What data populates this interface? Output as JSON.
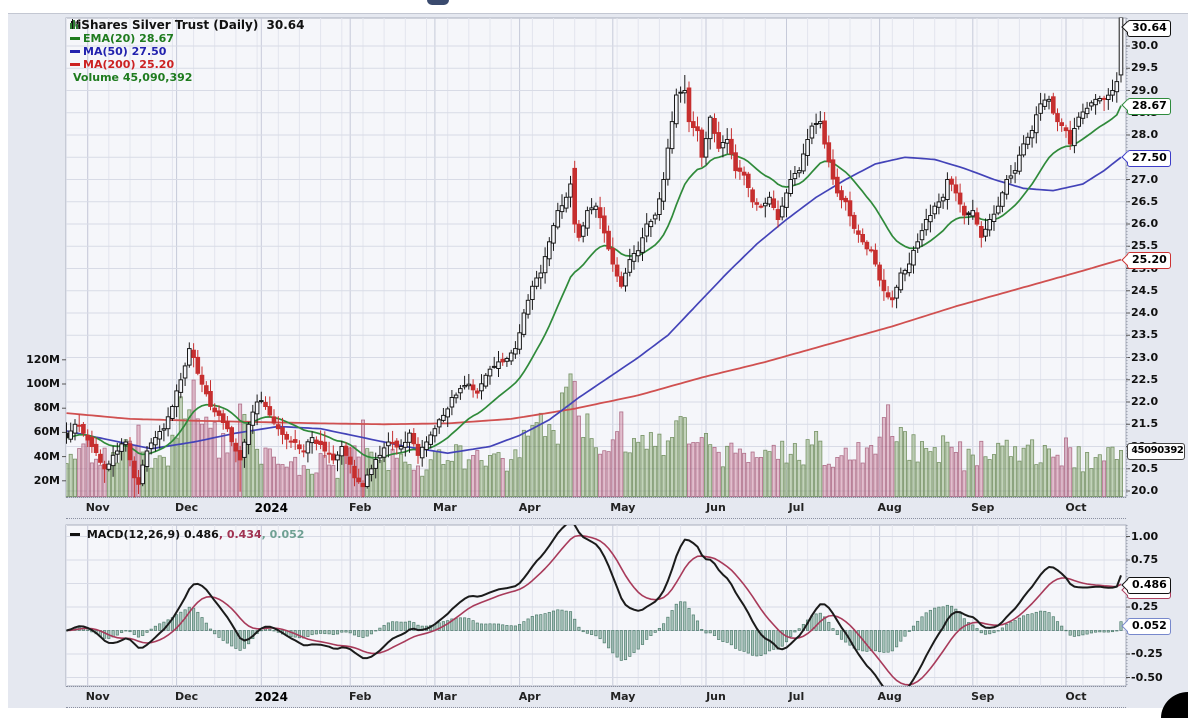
{
  "chart_data": {
    "type": "candlestick",
    "title": "iShares Silver Trust (Daily)",
    "last_price": "30.64",
    "legend": {
      "items": [
        {
          "id": "ema20",
          "label": "EMA(20) 28.67",
          "color": "#1e7b1e"
        },
        {
          "id": "ma50",
          "label": "MA(50) 27.50",
          "color": "#2222ae"
        },
        {
          "id": "ma200",
          "label": "MA(200) 25.20",
          "color": "#cc2222"
        },
        {
          "id": "volume",
          "label": "Volume 45,090,392",
          "color": "#1e7b1e"
        }
      ]
    },
    "macd_legend": {
      "label": "MACD(12,26,9)",
      "v1": " 0.486",
      "v2": ", 0.434",
      "v3": ", 0.052",
      "v1_color": "#111111",
      "v2_color": "#a03352",
      "v3_color": "#6fa093"
    },
    "x_labels": [
      {
        "label": "Nov",
        "day": 5
      },
      {
        "label": "Dec",
        "day": 26
      },
      {
        "label": "2024",
        "day": 46,
        "bold": true
      },
      {
        "label": "Feb",
        "day": 67
      },
      {
        "label": "Mar",
        "day": 87
      },
      {
        "label": "Apr",
        "day": 107
      },
      {
        "label": "May",
        "day": 129
      },
      {
        "label": "Jun",
        "day": 151
      },
      {
        "label": "Jul",
        "day": 170
      },
      {
        "label": "Aug",
        "day": 192
      },
      {
        "label": "Sep",
        "day": 214
      },
      {
        "label": "Oct",
        "day": 236
      }
    ],
    "price_ticks": [
      {
        "label": "30.0",
        "value": 30.0
      },
      {
        "label": "29.5",
        "value": 29.5
      },
      {
        "label": "29.0",
        "value": 29.0
      },
      {
        "label": "28.5",
        "value": 28.5
      },
      {
        "label": "28.0",
        "value": 28.0
      },
      {
        "label": "27.5",
        "value": 27.5
      },
      {
        "label": "27.0",
        "value": 27.0
      },
      {
        "label": "26.5",
        "value": 26.5
      },
      {
        "label": "26.0",
        "value": 26.0
      },
      {
        "label": "25.5",
        "value": 25.5
      },
      {
        "label": "25.0",
        "value": 25.0
      },
      {
        "label": "24.5",
        "value": 24.5
      },
      {
        "label": "24.0",
        "value": 24.0
      },
      {
        "label": "23.5",
        "value": 23.5
      },
      {
        "label": "23.0",
        "value": 23.0
      },
      {
        "label": "22.5",
        "value": 22.5
      },
      {
        "label": "22.0",
        "value": 22.0
      },
      {
        "label": "21.5",
        "value": 21.5
      },
      {
        "label": "21.0",
        "value": 21.0
      },
      {
        "label": "20.5",
        "value": 20.5
      },
      {
        "label": "20.0",
        "value": 20.0
      }
    ],
    "volume_ticks": [
      {
        "label": "120M",
        "value": 120
      },
      {
        "label": "100M",
        "value": 100
      },
      {
        "label": "80M",
        "value": 80
      },
      {
        "label": "60M",
        "value": 60
      },
      {
        "label": "40M",
        "value": 40
      },
      {
        "label": "20M",
        "value": 20
      }
    ],
    "macd_ticks": [
      {
        "label": "1.00",
        "value": 1.0
      },
      {
        "label": "0.75",
        "value": 0.75
      },
      {
        "label": "0.50",
        "value": 0.5
      },
      {
        "label": "0.25",
        "value": 0.25
      },
      {
        "label": "0.00",
        "value": 0.0
      },
      {
        "label": "-0.25",
        "value": -0.25
      },
      {
        "label": "-0.50",
        "value": -0.5
      }
    ],
    "price_badges": [
      {
        "id": "badge-last-price",
        "text": "30.64",
        "value": 30.64,
        "border": "#111111",
        "z": 9
      },
      {
        "id": "badge-ema20",
        "text": "28.67",
        "value": 28.67,
        "border": "#2e8b3c",
        "z": 8
      },
      {
        "id": "badge-ma50",
        "text": "27.50",
        "value": 27.5,
        "border": "#3c3cc8",
        "z": 8
      },
      {
        "id": "badge-ma200",
        "text": "25.20",
        "value": 25.2,
        "border": "#cc3333",
        "z": 8
      }
    ],
    "volume_badge": {
      "id": "badge-volume",
      "text": "45090392",
      "value": 45.09,
      "border": "#444444"
    },
    "macd_badges": [
      {
        "id": "badge-macd-signal",
        "text": "0.434",
        "value": 0.434,
        "border": "#b04060",
        "z": 7
      },
      {
        "id": "badge-macd-value",
        "text": "0.486",
        "value": 0.486,
        "border": "#111111",
        "z": 9
      },
      {
        "id": "badge-macd-hist",
        "text": "0.052",
        "value": 0.052,
        "border": "#7788cc",
        "z": 8
      }
    ],
    "series": {
      "days": 250,
      "close_keypoints": [
        [
          0,
          21.2
        ],
        [
          2,
          21.5
        ],
        [
          4,
          21.3
        ],
        [
          6,
          21.0
        ],
        [
          9,
          20.5
        ],
        [
          12,
          20.9
        ],
        [
          14,
          21.1
        ],
        [
          16,
          20.3
        ],
        [
          17,
          20.15
        ],
        [
          19,
          20.9
        ],
        [
          21,
          21.2
        ],
        [
          23,
          21.4
        ],
        [
          25,
          21.9
        ],
        [
          27,
          22.5
        ],
        [
          29,
          23.2
        ],
        [
          30,
          23.0
        ],
        [
          32,
          22.4
        ],
        [
          34,
          21.9
        ],
        [
          36,
          21.7
        ],
        [
          38,
          21.4
        ],
        [
          40,
          20.9
        ],
        [
          41,
          20.7
        ],
        [
          43,
          21.5
        ],
        [
          45,
          22.0
        ],
        [
          47,
          21.9
        ],
        [
          50,
          21.4
        ],
        [
          53,
          21.1
        ],
        [
          56,
          20.9
        ],
        [
          58,
          21.2
        ],
        [
          61,
          20.9
        ],
        [
          63,
          20.7
        ],
        [
          65,
          21.0
        ],
        [
          66,
          20.8
        ],
        [
          68,
          20.3
        ],
        [
          70,
          20.1
        ],
        [
          72,
          20.5
        ],
        [
          74,
          20.8
        ],
        [
          76,
          21.1
        ],
        [
          79,
          21.0
        ],
        [
          81,
          21.3
        ],
        [
          83,
          20.8
        ],
        [
          85,
          21.1
        ],
        [
          87,
          21.4
        ],
        [
          89,
          21.7
        ],
        [
          91,
          22.1
        ],
        [
          93,
          22.3
        ],
        [
          95,
          22.4
        ],
        [
          97,
          22.2
        ],
        [
          99,
          22.6
        ],
        [
          101,
          22.8
        ],
        [
          103,
          22.9
        ],
        [
          105,
          23.1
        ],
        [
          106,
          23.2
        ],
        [
          108,
          24.0
        ],
        [
          110,
          24.6
        ],
        [
          112,
          24.9
        ],
        [
          114,
          25.6
        ],
        [
          116,
          26.3
        ],
        [
          118,
          26.6
        ],
        [
          119,
          26.9
        ],
        [
          120,
          26.0
        ],
        [
          121,
          25.7
        ],
        [
          123,
          26.3
        ],
        [
          125,
          26.4
        ],
        [
          127,
          25.8
        ],
        [
          129,
          25.1
        ],
        [
          131,
          24.6
        ],
        [
          133,
          25.2
        ],
        [
          135,
          25.4
        ],
        [
          137,
          26.0
        ],
        [
          139,
          26.2
        ],
        [
          141,
          27.0
        ],
        [
          143,
          28.3
        ],
        [
          144,
          28.9
        ],
        [
          146,
          29.0
        ],
        [
          147,
          28.3
        ],
        [
          149,
          28.1
        ],
        [
          150,
          27.5
        ],
        [
          152,
          28.4
        ],
        [
          154,
          27.7
        ],
        [
          156,
          27.9
        ],
        [
          158,
          27.2
        ],
        [
          160,
          27.1
        ],
        [
          162,
          26.5
        ],
        [
          164,
          26.4
        ],
        [
          166,
          26.6
        ],
        [
          168,
          26.1
        ],
        [
          169,
          26.4
        ],
        [
          171,
          27.0
        ],
        [
          173,
          27.2
        ],
        [
          175,
          27.9
        ],
        [
          176,
          28.2
        ],
        [
          178,
          28.3
        ],
        [
          180,
          27.4
        ],
        [
          182,
          26.7
        ],
        [
          184,
          26.5
        ],
        [
          186,
          25.9
        ],
        [
          188,
          25.6
        ],
        [
          190,
          25.4
        ],
        [
          191,
          25.1
        ],
        [
          193,
          24.5
        ],
        [
          195,
          24.3
        ],
        [
          197,
          24.9
        ],
        [
          199,
          25.1
        ],
        [
          201,
          25.6
        ],
        [
          203,
          26.1
        ],
        [
          205,
          26.4
        ],
        [
          207,
          26.6
        ],
        [
          208,
          27.0
        ],
        [
          210,
          26.7
        ],
        [
          212,
          26.2
        ],
        [
          214,
          26.3
        ],
        [
          216,
          25.7
        ],
        [
          218,
          26.1
        ],
        [
          220,
          26.4
        ],
        [
          222,
          27.0
        ],
        [
          224,
          27.2
        ],
        [
          226,
          27.8
        ],
        [
          228,
          28.1
        ],
        [
          230,
          28.7
        ],
        [
          232,
          28.8
        ],
        [
          234,
          28.3
        ],
        [
          236,
          28.1
        ],
        [
          237,
          27.8
        ],
        [
          239,
          28.4
        ],
        [
          241,
          28.6
        ],
        [
          243,
          28.8
        ],
        [
          245,
          28.8
        ],
        [
          247,
          29.0
        ],
        [
          248,
          29.2
        ],
        [
          249,
          30.64
        ]
      ],
      "volume_keypoints": [
        [
          0,
          40
        ],
        [
          4,
          46
        ],
        [
          8,
          38
        ],
        [
          12,
          34
        ],
        [
          16,
          58
        ],
        [
          20,
          36
        ],
        [
          24,
          42
        ],
        [
          27,
          70
        ],
        [
          29,
          95
        ],
        [
          31,
          88
        ],
        [
          34,
          60
        ],
        [
          37,
          48
        ],
        [
          40,
          55
        ],
        [
          41,
          72
        ],
        [
          44,
          48
        ],
        [
          48,
          40
        ],
        [
          52,
          34
        ],
        [
          56,
          30
        ],
        [
          60,
          34
        ],
        [
          64,
          30
        ],
        [
          68,
          48
        ],
        [
          70,
          56
        ],
        [
          73,
          44
        ],
        [
          77,
          36
        ],
        [
          81,
          32
        ],
        [
          85,
          30
        ],
        [
          88,
          44
        ],
        [
          92,
          40
        ],
        [
          96,
          36
        ],
        [
          100,
          38
        ],
        [
          104,
          36
        ],
        [
          107,
          52
        ],
        [
          110,
          62
        ],
        [
          113,
          58
        ],
        [
          116,
          66
        ],
        [
          119,
          88
        ],
        [
          120,
          118
        ],
        [
          122,
          72
        ],
        [
          125,
          58
        ],
        [
          128,
          52
        ],
        [
          131,
          62
        ],
        [
          134,
          48
        ],
        [
          137,
          52
        ],
        [
          140,
          54
        ],
        [
          143,
          60
        ],
        [
          144,
          64
        ],
        [
          147,
          58
        ],
        [
          150,
          52
        ],
        [
          153,
          46
        ],
        [
          157,
          40
        ],
        [
          161,
          44
        ],
        [
          165,
          38
        ],
        [
          169,
          42
        ],
        [
          173,
          40
        ],
        [
          177,
          48
        ],
        [
          181,
          42
        ],
        [
          185,
          44
        ],
        [
          189,
          40
        ],
        [
          192,
          66
        ],
        [
          194,
          72
        ],
        [
          197,
          54
        ],
        [
          201,
          46
        ],
        [
          205,
          42
        ],
        [
          208,
          50
        ],
        [
          212,
          38
        ],
        [
          216,
          44
        ],
        [
          220,
          40
        ],
        [
          224,
          44
        ],
        [
          228,
          46
        ],
        [
          232,
          42
        ],
        [
          236,
          44
        ],
        [
          240,
          38
        ],
        [
          244,
          42
        ],
        [
          247,
          40
        ],
        [
          249,
          45.09
        ]
      ],
      "ma50_keypoints": [
        [
          0,
          21.35
        ],
        [
          10,
          21.15
        ],
        [
          20,
          20.95
        ],
        [
          30,
          21.1
        ],
        [
          40,
          21.3
        ],
        [
          50,
          21.45
        ],
        [
          60,
          21.4
        ],
        [
          70,
          21.2
        ],
        [
          80,
          21.0
        ],
        [
          90,
          20.85
        ],
        [
          100,
          21.0
        ],
        [
          107,
          21.25
        ],
        [
          114,
          21.6
        ],
        [
          121,
          22.1
        ],
        [
          128,
          22.55
        ],
        [
          135,
          23.0
        ],
        [
          142,
          23.5
        ],
        [
          149,
          24.2
        ],
        [
          156,
          24.9
        ],
        [
          163,
          25.55
        ],
        [
          170,
          26.1
        ],
        [
          177,
          26.6
        ],
        [
          184,
          27.0
        ],
        [
          191,
          27.35
        ],
        [
          198,
          27.5
        ],
        [
          205,
          27.45
        ],
        [
          212,
          27.25
        ],
        [
          219,
          27.0
        ],
        [
          226,
          26.8
        ],
        [
          233,
          26.75
        ],
        [
          240,
          26.9
        ],
        [
          245,
          27.2
        ],
        [
          249,
          27.5
        ]
      ],
      "ma200_keypoints": [
        [
          0,
          21.75
        ],
        [
          15,
          21.62
        ],
        [
          30,
          21.58
        ],
        [
          45,
          21.55
        ],
        [
          60,
          21.52
        ],
        [
          75,
          21.5
        ],
        [
          90,
          21.52
        ],
        [
          105,
          21.62
        ],
        [
          120,
          21.85
        ],
        [
          135,
          22.15
        ],
        [
          150,
          22.55
        ],
        [
          165,
          22.9
        ],
        [
          180,
          23.3
        ],
        [
          195,
          23.7
        ],
        [
          210,
          24.15
        ],
        [
          225,
          24.55
        ],
        [
          240,
          24.95
        ],
        [
          249,
          25.2
        ]
      ],
      "special_candles": [
        {
          "day": 120,
          "open": 27.25,
          "high": 27.42,
          "low": 25.8,
          "close": 26.0
        },
        {
          "day": 249,
          "open": 29.35,
          "high": 30.7,
          "low": 29.18,
          "close": 30.64
        }
      ],
      "wick_events": [
        {
          "day": 9,
          "low_extend": 0.25
        },
        {
          "day": 16,
          "low_extend": 0.4
        },
        {
          "day": 41,
          "low_extend": 0.5
        },
        {
          "day": 70,
          "low_extend": 0.2
        },
        {
          "day": 146,
          "high_extend": 0.3
        }
      ]
    },
    "colors": {
      "up": "#1a1a1a",
      "down": "#c62f2f",
      "ema20_line": "#2f8a3a",
      "ma50_line": "#4343b8",
      "ma200_line": "#d05050",
      "vol_up_fill": "rgba(124,160,98,0.42)",
      "vol_up_stroke": "rgba(88,122,66,0.75)",
      "vol_down_fill": "rgba(198,112,142,0.42)",
      "vol_down_stroke": "rgba(156,78,108,0.75)",
      "macd_line": "#1b1b1b",
      "macd_signal": "#a83a5a",
      "macd_hist_fill": "rgba(98,150,130,0.5)",
      "macd_hist_stroke": "rgba(58,108,90,0.85)",
      "plot_bg": "#f5f6fa",
      "grid_h": "#d8dbe6",
      "grid_week": "#e3e5ee",
      "grid_month": "#c6cad9",
      "panel_bg": "#e5e8f0"
    },
    "axis_ranges": {
      "price": [
        20.0,
        30.0
      ],
      "volume_m": [
        0,
        120
      ],
      "macd": [
        -0.5,
        1.0
      ]
    }
  }
}
